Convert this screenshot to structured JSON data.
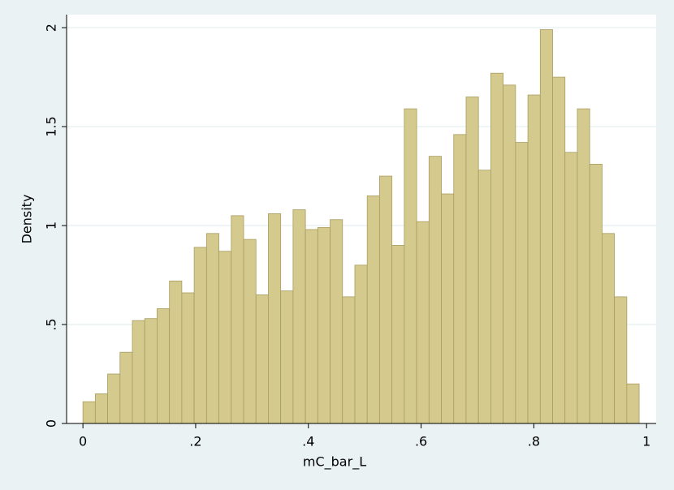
{
  "chart_data": {
    "type": "histogram",
    "x_label": "mC_bar_L",
    "y_label": "Density",
    "bins": [
      0,
      0.02193,
      0.04386,
      0.06579,
      0.08772,
      0.10965,
      0.13158,
      0.15351,
      0.17544,
      0.19737,
      0.2193,
      0.24123,
      0.26316,
      0.28509,
      0.30702,
      0.32895,
      0.35088,
      0.37281,
      0.39474,
      0.41667,
      0.4386,
      0.46053,
      0.48246,
      0.50439,
      0.52632,
      0.54825,
      0.57018,
      0.59211,
      0.61404,
      0.63597,
      0.6579,
      0.67983,
      0.70176,
      0.72369,
      0.74562,
      0.76755,
      0.78948,
      0.81141,
      0.83334,
      0.85527,
      0.8772,
      0.89913,
      0.92106,
      0.94299,
      0.96492,
      0.98685
    ],
    "values": [
      0.11,
      0.15,
      0.25,
      0.36,
      0.52,
      0.53,
      0.58,
      0.72,
      0.66,
      0.89,
      0.96,
      0.87,
      1.05,
      0.93,
      0.65,
      1.06,
      0.67,
      1.08,
      0.98,
      0.99,
      1.03,
      0.64,
      0.8,
      1.15,
      1.25,
      0.9,
      1.59,
      1.02,
      1.35,
      1.16,
      1.46,
      1.65,
      1.28,
      1.77,
      1.71,
      1.42,
      1.66,
      1.99,
      1.75,
      1.37,
      1.59,
      1.31,
      0.96,
      0.64,
      0.2
    ],
    "color": "#d5ca8d",
    "xlim": [
      -0.029,
      1.017
    ],
    "ylim": [
      0,
      2.066
    ],
    "xticks": [
      0,
      {
        "value": 0.2,
        "label": ".2"
      },
      {
        "value": 0.4,
        "label": ".4"
      },
      {
        "value": 0.6,
        "label": ".6"
      },
      {
        "value": 0.8,
        "label": ".8"
      },
      1
    ],
    "yticks": [
      0,
      {
        "value": 0.5,
        "label": ".5"
      },
      1,
      {
        "value": 1.5,
        "label": "1.5"
      },
      2
    ],
    "grid": true
  }
}
